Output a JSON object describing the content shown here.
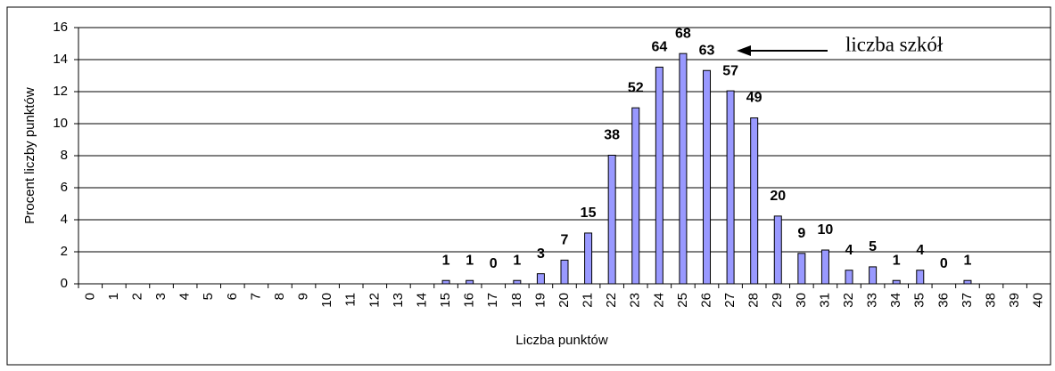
{
  "chart_data": {
    "type": "bar",
    "x_label": "Liczba punktów",
    "y_label": "Procent liczby punktów",
    "annotation": "liczba szkół",
    "categories": [
      "0",
      "1",
      "2",
      "3",
      "4",
      "5",
      "6",
      "7",
      "8",
      "9",
      "10",
      "11",
      "12",
      "13",
      "14",
      "15",
      "16",
      "17",
      "18",
      "19",
      "20",
      "21",
      "22",
      "23",
      "24",
      "25",
      "26",
      "27",
      "28",
      "29",
      "30",
      "31",
      "32",
      "33",
      "34",
      "35",
      "36",
      "37",
      "38",
      "39",
      "40"
    ],
    "values": [
      0,
      0,
      0,
      0,
      0,
      0,
      0,
      0,
      0,
      0,
      0,
      0,
      0,
      0,
      0,
      0.21,
      0.21,
      0,
      0.21,
      0.63,
      1.48,
      3.17,
      8.03,
      10.99,
      13.53,
      14.38,
      13.32,
      12.05,
      10.36,
      4.23,
      1.9,
      2.11,
      0.85,
      1.06,
      0.21,
      0.85,
      0,
      0.21,
      0,
      0,
      0
    ],
    "school_counts": [
      null,
      null,
      null,
      null,
      null,
      null,
      null,
      null,
      null,
      null,
      null,
      null,
      null,
      null,
      null,
      1,
      1,
      0,
      1,
      3,
      7,
      15,
      38,
      52,
      64,
      68,
      63,
      57,
      49,
      20,
      9,
      10,
      4,
      5,
      1,
      4,
      0,
      1,
      null,
      null,
      null
    ],
    "color": "#9999ff",
    "ylim": [
      0,
      16
    ],
    "yticks": [
      0,
      2,
      4,
      6,
      8,
      10,
      12,
      14,
      16
    ],
    "grid": true
  }
}
